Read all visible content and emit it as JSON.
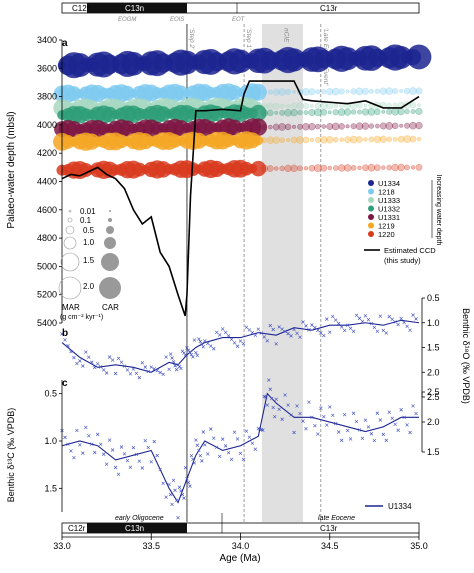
{
  "chart_data": [
    {
      "panel": "a",
      "type": "scatter",
      "ylabel": "Palaeo-water depth (mbsl)",
      "xlim": [
        33.0,
        35.0
      ],
      "ylim": [
        5400,
        3400
      ],
      "yticks": [
        3400,
        3600,
        3800,
        4000,
        4200,
        4400,
        4600,
        4800,
        5000,
        5200,
        5400
      ],
      "grid": false,
      "legend_position": "right",
      "series": [
        {
          "name": "U1334",
          "color": "#1c2591",
          "depth_start": 3580,
          "depth_end": 3520
        },
        {
          "name": "1218",
          "color": "#7fcaf0",
          "depth_start": 3780,
          "depth_end": 3760
        },
        {
          "name": "U1333",
          "color": "#a7d8c1",
          "depth_start": 3880,
          "depth_end": 3860
        },
        {
          "name": "U1332",
          "color": "#2e9e78",
          "depth_start": 3930,
          "depth_end": 3905
        },
        {
          "name": "U1331",
          "color": "#7d1642",
          "depth_start": 4030,
          "depth_end": 4005
        },
        {
          "name": "1219",
          "color": "#f5a623",
          "depth_start": 4120,
          "depth_end": 4100
        },
        {
          "name": "1220",
          "color": "#d83a1e",
          "depth_start": 4320,
          "depth_end": 4300
        }
      ],
      "ccd": {
        "name": "Estimated CCD",
        "note": "(this study)",
        "color": "#000000",
        "x": [
          33.0,
          33.05,
          33.1,
          33.15,
          33.2,
          33.25,
          33.3,
          33.35,
          33.4,
          33.45,
          33.5,
          33.55,
          33.6,
          33.65,
          33.69,
          33.7,
          33.72,
          33.75,
          33.8,
          33.9,
          34.0,
          34.02,
          34.05,
          34.1,
          34.2,
          34.3,
          34.35,
          34.4,
          34.5,
          34.6,
          34.7,
          34.8,
          34.9,
          35.0
        ],
        "y": [
          4380,
          4350,
          4360,
          4330,
          4300,
          4350,
          4380,
          4450,
          4600,
          4700,
          4650,
          4900,
          5000,
          5200,
          5350,
          5200,
          4500,
          3900,
          3900,
          3890,
          3900,
          3780,
          3690,
          3690,
          3690,
          3690,
          3820,
          3830,
          3840,
          3850,
          3830,
          3880,
          3880,
          3800
        ]
      },
      "annotations": [
        {
          "label": "'Step 2'",
          "x": 33.7
        },
        {
          "label": "'Step 1'",
          "x": 34.02
        },
        {
          "label": "nCIE",
          "x": 34.23
        },
        {
          "label": "'Late Eocene Event'",
          "x": 34.45
        }
      ],
      "shaded_band": {
        "label": "nCIE",
        "x_range": [
          34.12,
          34.35
        ]
      },
      "legend_items": [
        "U1334",
        "1218",
        "U1333",
        "U1332",
        "U1331",
        "1219",
        "1220",
        "Estimated CCD",
        "(this study)"
      ],
      "legend_note": "Increasing water depth",
      "size_legend": {
        "mar_label": "MAR",
        "mar_unit": "(g cm⁻² kyr⁻¹)",
        "car_label": "CAR",
        "values": [
          "0.01",
          "0.1",
          "0.5",
          "1.0",
          "1.5",
          "2.0"
        ]
      }
    },
    {
      "panel": "b",
      "type": "line",
      "ylabel": "Benthic δ¹⁸O (‰ VPDB)",
      "ylim": [
        2.5,
        0.5
      ],
      "yticks": [
        0.5,
        1.0,
        1.5,
        2.0,
        2.5
      ],
      "x": [
        33.0,
        33.1,
        33.2,
        33.3,
        33.4,
        33.5,
        33.6,
        33.65,
        33.7,
        33.75,
        33.8,
        33.9,
        34.0,
        34.1,
        34.2,
        34.3,
        34.4,
        34.5,
        34.6,
        34.7,
        34.8,
        34.9,
        35.0
      ],
      "values": [
        1.4,
        1.7,
        1.9,
        1.85,
        1.9,
        2.0,
        1.8,
        1.85,
        1.65,
        1.5,
        1.4,
        1.3,
        1.3,
        1.2,
        1.25,
        1.1,
        1.15,
        1.05,
        1.05,
        1.0,
        1.05,
        0.95,
        1.0
      ]
    },
    {
      "panel": "c",
      "type": "line",
      "ylabel": "Benthic δ¹³C (‰ VPDB)",
      "ylim": [
        1.75,
        0.25
      ],
      "yticks_left": [
        0.5,
        1.0,
        1.5
      ],
      "yticks_right": [
        1.5,
        2.0,
        2.5
      ],
      "x": [
        33.0,
        33.1,
        33.2,
        33.3,
        33.4,
        33.5,
        33.6,
        33.65,
        33.7,
        33.75,
        33.8,
        33.9,
        34.0,
        34.1,
        34.15,
        34.2,
        34.3,
        34.4,
        34.5,
        34.6,
        34.7,
        34.8,
        34.9,
        35.0
      ],
      "values": [
        1.05,
        1.0,
        1.05,
        1.2,
        1.15,
        1.1,
        1.5,
        1.65,
        1.4,
        1.15,
        1.0,
        1.1,
        1.05,
        0.95,
        0.5,
        0.6,
        0.75,
        0.75,
        0.8,
        0.85,
        0.9,
        0.85,
        0.75,
        0.75
      ],
      "legend": "U1334"
    }
  ],
  "x_axis": {
    "label": "Age (Ma)",
    "ticks": [
      "33.0",
      "33.5",
      "34.0",
      "34.5",
      "35.0"
    ],
    "tick_values": [
      33.0,
      33.5,
      34.0,
      34.5,
      35.0
    ]
  },
  "chron_top": [
    "C12r",
    "C13n",
    "C13r"
  ],
  "chron_top_sub": [
    "EOGM",
    "EOIS",
    "EOT"
  ],
  "chron_bottom": [
    "C12r",
    "C13n",
    "C13r"
  ],
  "epochs": [
    "early Oligocene",
    "late Eocene"
  ],
  "panel_labels": [
    "a",
    "b",
    "c"
  ]
}
